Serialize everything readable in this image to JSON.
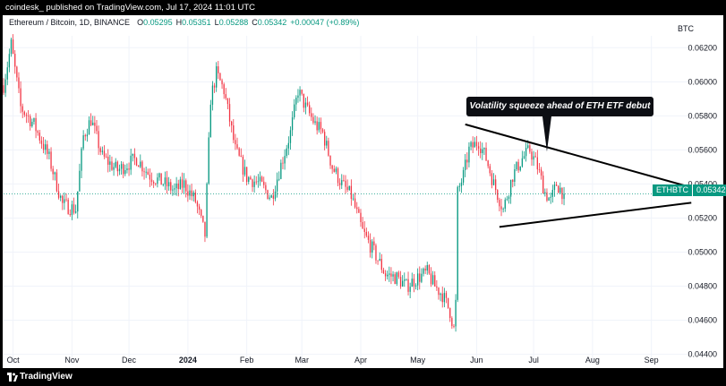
{
  "header": {
    "publish_line": "coindesk_ published on TradingView.com, Jul 17, 2024 11:01 UTC"
  },
  "legend": {
    "symbol": "Ethereum / Bitcoin, 1D, BINANCE",
    "open_label": "O",
    "open_value": "0.05295",
    "high_label": "H",
    "high_value": "0.05351",
    "low_label": "L",
    "low_value": "0.05288",
    "close_label": "C",
    "close_value": "0.05342",
    "change": "+0.00047 (+0.89%)"
  },
  "currency": "BTC",
  "annotation": "Volatility squeeze ahead of ETH ETF debut",
  "price_tag": {
    "symbol": "ETHBTC",
    "value": "0.05342"
  },
  "footer": {
    "brand": "TradingView"
  },
  "colors": {
    "up": "#089981",
    "down": "#f23645",
    "annotation_bg": "#0c0e13",
    "frame": "#000000"
  },
  "chart_data": {
    "type": "candlestick",
    "title": "",
    "symbol": "ETHBTC",
    "interval": "1D",
    "exchange": "BINANCE",
    "y_range": [
      0.0434,
      0.0627
    ],
    "y_ticks": [
      "0.06200",
      "0.06000",
      "0.05800",
      "0.05600",
      "0.05400",
      "0.05200",
      "0.05000",
      "0.04800",
      "0.04600",
      "0.04400"
    ],
    "x_range": [
      "2023-09-26",
      "2024-09-20"
    ],
    "x_ticks": [
      {
        "label": "Oct",
        "date": "2023-10-01"
      },
      {
        "label": "Nov",
        "date": "2023-11-01"
      },
      {
        "label": "Dec",
        "date": "2023-12-01"
      },
      {
        "label": "2024",
        "date": "2024-01-01"
      },
      {
        "label": "Feb",
        "date": "2024-02-01"
      },
      {
        "label": "Mar",
        "date": "2024-03-01"
      },
      {
        "label": "Apr",
        "date": "2024-04-01"
      },
      {
        "label": "May",
        "date": "2024-05-01"
      },
      {
        "label": "Jun",
        "date": "2024-06-01"
      },
      {
        "label": "Jul",
        "date": "2024-07-01"
      },
      {
        "label": "Aug",
        "date": "2024-08-01"
      },
      {
        "label": "Sep",
        "date": "2024-09-01"
      }
    ],
    "close_path": [
      [
        "2023-09-26",
        0.0598
      ],
      [
        "2023-09-30",
        0.0622
      ],
      [
        "2023-10-05",
        0.0585
      ],
      [
        "2023-10-12",
        0.0575
      ],
      [
        "2023-10-20",
        0.0555
      ],
      [
        "2023-10-27",
        0.0528
      ],
      [
        "2023-11-03",
        0.0525
      ],
      [
        "2023-11-07",
        0.0568
      ],
      [
        "2023-11-11",
        0.0578
      ],
      [
        "2023-11-17",
        0.0556
      ],
      [
        "2023-11-25",
        0.0548
      ],
      [
        "2023-12-05",
        0.0555
      ],
      [
        "2023-12-12",
        0.0545
      ],
      [
        "2023-12-20",
        0.054
      ],
      [
        "2023-12-25",
        0.0536
      ],
      [
        "2023-12-30",
        0.054
      ],
      [
        "2024-01-05",
        0.053
      ],
      [
        "2024-01-10",
        0.051
      ],
      [
        "2024-01-13",
        0.059
      ],
      [
        "2024-01-16",
        0.0605
      ],
      [
        "2024-01-20",
        0.0595
      ],
      [
        "2024-01-26",
        0.056
      ],
      [
        "2024-02-01",
        0.0544
      ],
      [
        "2024-02-08",
        0.054
      ],
      [
        "2024-02-14",
        0.0532
      ],
      [
        "2024-02-20",
        0.0555
      ],
      [
        "2024-02-24",
        0.057
      ],
      [
        "2024-02-28",
        0.0595
      ],
      [
        "2024-03-03",
        0.0585
      ],
      [
        "2024-03-08",
        0.0575
      ],
      [
        "2024-03-12",
        0.057
      ],
      [
        "2024-03-17",
        0.055
      ],
      [
        "2024-03-22",
        0.054
      ],
      [
        "2024-03-27",
        0.0533
      ],
      [
        "2024-04-02",
        0.0512
      ],
      [
        "2024-04-08",
        0.05
      ],
      [
        "2024-04-14",
        0.0487
      ],
      [
        "2024-04-20",
        0.0485
      ],
      [
        "2024-04-25",
        0.048
      ],
      [
        "2024-05-01",
        0.0485
      ],
      [
        "2024-05-06",
        0.0488
      ],
      [
        "2024-05-10",
        0.048
      ],
      [
        "2024-05-14",
        0.0475
      ],
      [
        "2024-05-18",
        0.0465
      ],
      [
        "2024-05-20",
        0.0455
      ],
      [
        "2024-05-21",
        0.047
      ],
      [
        "2024-05-22",
        0.0535
      ],
      [
        "2024-05-25",
        0.0545
      ],
      [
        "2024-05-28",
        0.056
      ],
      [
        "2024-06-02",
        0.0565
      ],
      [
        "2024-06-06",
        0.0555
      ],
      [
        "2024-06-10",
        0.054
      ],
      [
        "2024-06-15",
        0.0525
      ],
      [
        "2024-06-20",
        0.0545
      ],
      [
        "2024-06-25",
        0.0555
      ],
      [
        "2024-06-29",
        0.056
      ],
      [
        "2024-07-03",
        0.055
      ],
      [
        "2024-07-07",
        0.0535
      ],
      [
        "2024-07-10",
        0.053
      ],
      [
        "2024-07-13",
        0.054
      ],
      [
        "2024-07-17",
        0.05342
      ]
    ],
    "trendlines": [
      {
        "name": "upper",
        "from": [
          "2024-05-26",
          0.0575
        ],
        "to": [
          "2024-09-22",
          0.0538
        ]
      },
      {
        "name": "lower",
        "from": [
          "2024-06-13",
          0.05148
        ],
        "to": [
          "2024-09-22",
          0.0529
        ]
      }
    ],
    "annotation_pointer": [
      "2024-07-08",
      0.0559
    ],
    "last_close": 0.05342
  }
}
